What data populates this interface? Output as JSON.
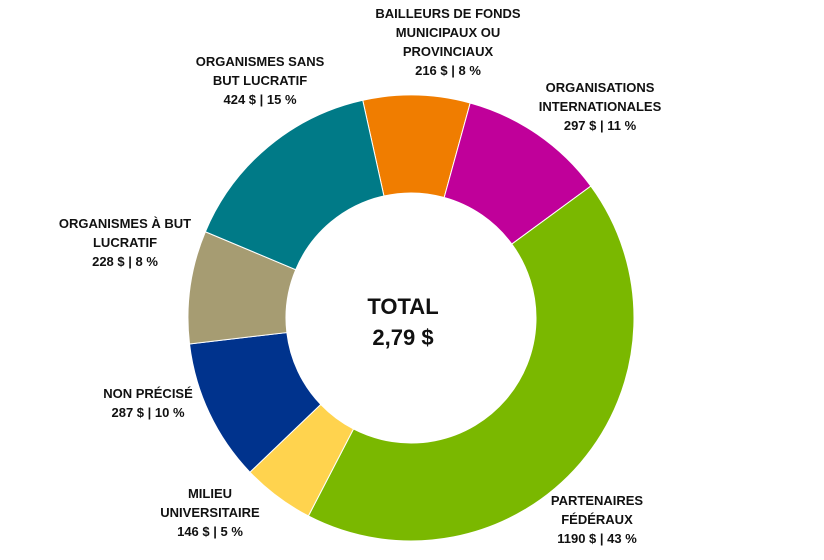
{
  "chart_data": {
    "type": "pie",
    "variant": "donut",
    "center": {
      "title": "TOTAL",
      "value": "2,79 $"
    },
    "slices": [
      {
        "name": "BAILLEURS DE FONDS MUNICIPAUX OU PROVINCIAUX",
        "label_lines": [
          "BAILLEURS DE FONDS",
          "MUNICIPAUX OU",
          "PROVINCIAUX"
        ],
        "amount": 216,
        "percent": 8,
        "value_label": "216 $ | 8 %",
        "color": "#F07D00"
      },
      {
        "name": "ORGANISATIONS INTERNATIONALES",
        "label_lines": [
          "ORGANISATIONS",
          "INTERNATIONALES"
        ],
        "amount": 297,
        "percent": 11,
        "value_label": "297 $ | 11 %",
        "color": "#C0009A"
      },
      {
        "name": "PARTENAIRES FÉDÉRAUX",
        "label_lines": [
          "PARTENAIRES",
          "FÉDÉRAUX"
        ],
        "amount": 1190,
        "percent": 43,
        "value_label": "1190 $ | 43 %",
        "color": "#7AB800"
      },
      {
        "name": "MILIEU UNIVERSITAIRE",
        "label_lines": [
          "MILIEU",
          "UNIVERSITAIRE"
        ],
        "amount": 146,
        "percent": 5,
        "value_label": "146 $ | 5 %",
        "color": "#FFD34E"
      },
      {
        "name": "NON PRÉCISÉ",
        "label_lines": [
          "NON PRÉCISÉ"
        ],
        "amount": 287,
        "percent": 10,
        "value_label": "287 $ | 10 %",
        "color": "#00338D"
      },
      {
        "name": "ORGANISMES À BUT LUCRATIF",
        "label_lines": [
          "ORGANISMES À BUT",
          "LUCRATIF"
        ],
        "amount": 228,
        "percent": 8,
        "value_label": "228 $ | 8 %",
        "color": "#A69C72"
      },
      {
        "name": "ORGANISMES SANS BUT LUCRATIF",
        "label_lines": [
          "ORGANISMES SANS",
          "BUT LUCRATIF"
        ],
        "amount": 424,
        "percent": 15,
        "value_label": "424 $ | 15 %",
        "color": "#007A87"
      }
    ]
  }
}
